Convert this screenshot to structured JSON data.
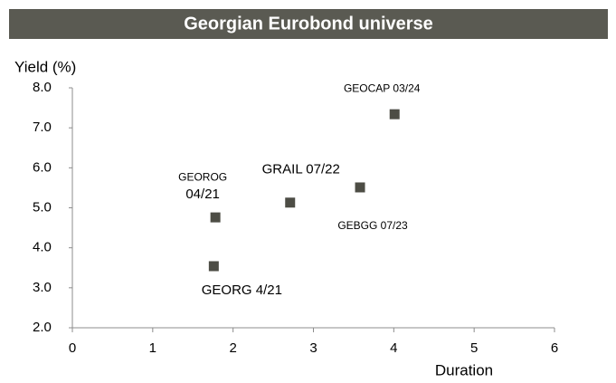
{
  "chart_data": {
    "type": "scatter",
    "title": "Georgian Eurobond universe",
    "y_label": "Yield (%)",
    "x_label": "Duration",
    "x": [
      4.01,
      3.58,
      2.71,
      1.78,
      1.76
    ],
    "values": [
      7.34,
      5.51,
      5.13,
      4.76,
      3.54
    ],
    "labels": [
      [
        "GEOCAP 03/24"
      ],
      [
        "GEBGG 07/23"
      ],
      [
        "GRAIL 07/22"
      ],
      [
        "GEOROG",
        "04/21"
      ],
      [
        "GEORG 4/21"
      ]
    ],
    "color": "#4d4d45",
    "xlim": [
      0,
      6
    ],
    "xticks": [
      0,
      1,
      2,
      3,
      4,
      5,
      6
    ],
    "ylim": [
      2,
      8
    ],
    "yticks": [
      {
        "value": 2,
        "label": "2.0"
      },
      {
        "value": 3,
        "label": "3.0"
      },
      {
        "value": 4,
        "label": "4.0"
      },
      {
        "value": 5,
        "label": "5.0"
      },
      {
        "value": 6,
        "label": "6.0"
      },
      {
        "value": 7,
        "label": "7.0"
      },
      {
        "value": 8,
        "label": "8.0"
      }
    ],
    "grid": false
  }
}
